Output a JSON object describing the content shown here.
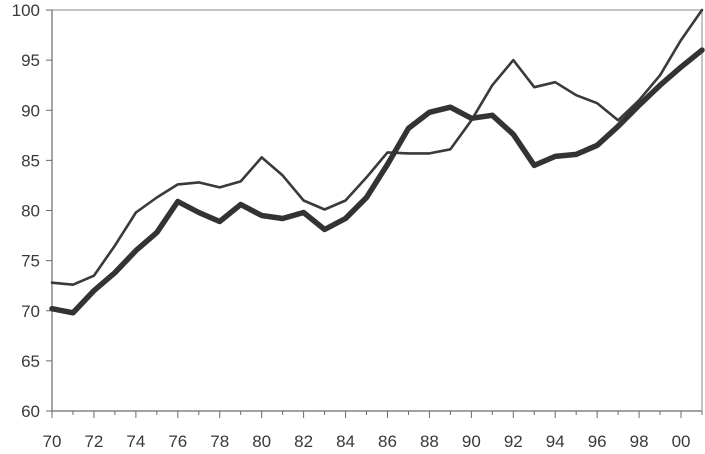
{
  "chart_data": {
    "type": "line",
    "title": "",
    "xlabel": "",
    "ylabel": "",
    "x": [
      1970,
      1971,
      1972,
      1973,
      1974,
      1975,
      1976,
      1977,
      1978,
      1979,
      1980,
      1981,
      1982,
      1983,
      1984,
      1985,
      1986,
      1987,
      1988,
      1989,
      1990,
      1991,
      1992,
      1993,
      1994,
      1995,
      1996,
      1997,
      1998,
      1999,
      2000,
      2001
    ],
    "xlim": [
      1970,
      2001
    ],
    "ylim": [
      60,
      100
    ],
    "x_tick_values": [
      1970,
      1972,
      1974,
      1976,
      1978,
      1980,
      1982,
      1984,
      1986,
      1988,
      1990,
      1992,
      1994,
      1996,
      1998,
      2000
    ],
    "x_tick_labels": [
      "70",
      "72",
      "74",
      "76",
      "78",
      "80",
      "82",
      "84",
      "86",
      "88",
      "90",
      "92",
      "94",
      "96",
      "98",
      "00"
    ],
    "y_tick_values": [
      60,
      65,
      70,
      75,
      80,
      85,
      90,
      95,
      100
    ],
    "y_tick_labels": [
      "60",
      "65",
      "70",
      "75",
      "80",
      "85",
      "90",
      "95",
      "100"
    ],
    "grid": false,
    "legend": "none",
    "series": [
      {
        "style": "thin",
        "color": "#3a3a3a",
        "values": [
          72.8,
          72.6,
          73.5,
          76.5,
          79.8,
          81.3,
          82.6,
          82.8,
          82.3,
          82.9,
          85.3,
          83.5,
          81.0,
          80.1,
          81.0,
          83.3,
          85.8,
          85.7,
          85.7,
          86.1,
          89.0,
          92.5,
          95.0,
          92.3,
          92.8,
          91.5,
          90.7,
          89.0,
          91.0,
          93.5,
          97.0,
          100.0
        ]
      },
      {
        "style": "thick",
        "color": "#333333",
        "values": [
          70.2,
          69.8,
          72.0,
          73.8,
          76.0,
          77.8,
          80.9,
          79.8,
          78.9,
          80.6,
          79.5,
          79.2,
          79.8,
          78.1,
          79.2,
          81.3,
          84.6,
          88.2,
          89.8,
          90.3,
          89.2,
          89.5,
          87.6,
          84.5,
          85.4,
          85.6,
          86.5,
          88.4,
          90.5,
          92.5,
          94.3,
          96.0
        ]
      }
    ]
  }
}
